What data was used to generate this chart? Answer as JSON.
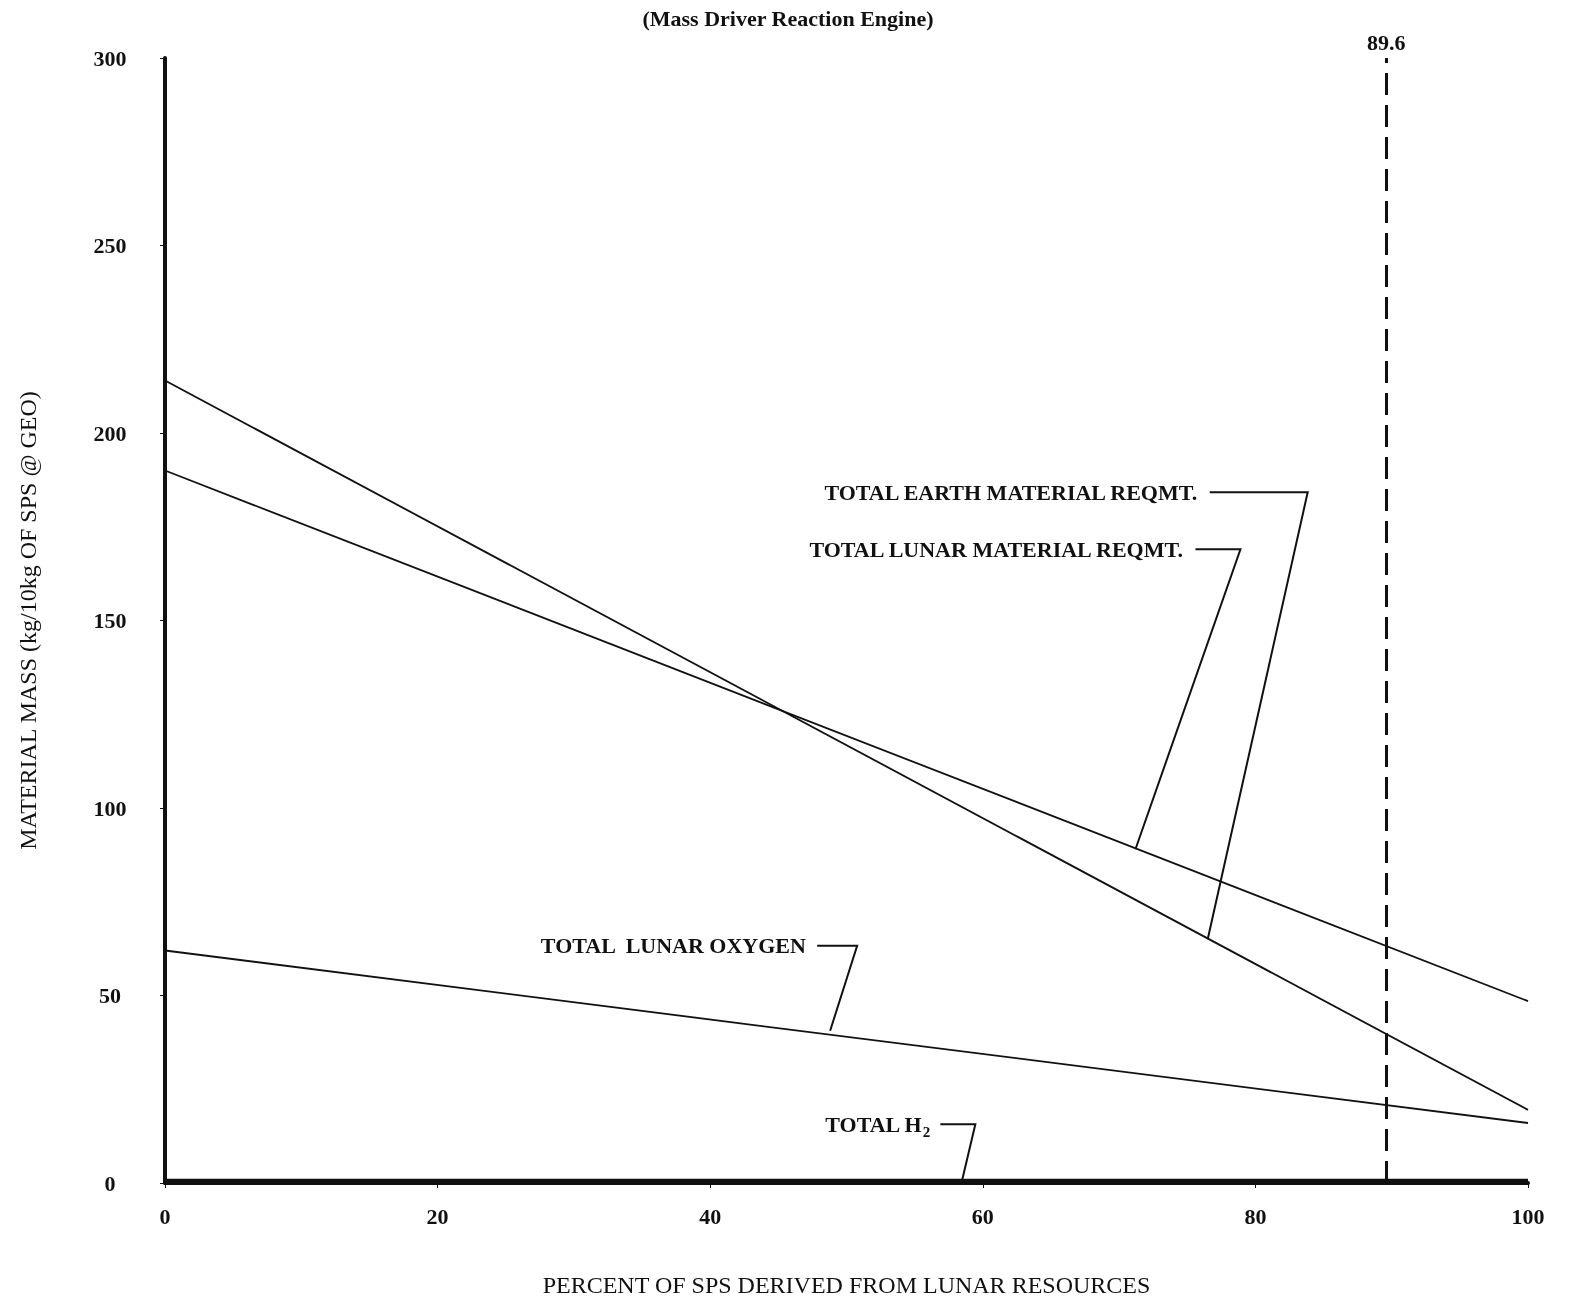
{
  "chart_data": {
    "type": "line",
    "title": "(Mass Driver Reaction Engine)",
    "xlabel": "PERCENT OF SPS DERIVED FROM LUNAR RESOURCES",
    "ylabel": "MATERIAL MASS (kg/10kg OF SPS @ GEO)",
    "xlim": [
      0,
      100
    ],
    "xticks": [
      0,
      20,
      40,
      60,
      80,
      100
    ],
    "ylim": [
      0,
      300
    ],
    "yticks": [
      0,
      50,
      100,
      150,
      200,
      250,
      300
    ],
    "x": [
      0,
      100
    ],
    "grid": false,
    "marker": "none",
    "line_style": "solid",
    "series": [
      {
        "color": "#111111",
        "values": [
          214,
          19.5
        ]
      },
      {
        "color": "#111111",
        "values": [
          190,
          48.5
        ]
      },
      {
        "color": "#111111",
        "values": [
          62,
          16
        ]
      },
      {
        "color": "#111111",
        "values": [
          0.5,
          0.5
        ]
      }
    ],
    "annotations": [
      {
        "text": "TOTAL EARTH MATERIAL REQMT.",
        "x": 76.5,
        "y": 65
      },
      {
        "text": "TOTAL LUNAR MATERIAL REQMT.",
        "x": 71.2,
        "y": 89
      },
      {
        "text": "TOTAL  LUNAR OXYGEN",
        "x": 48.8,
        "y": 40.6
      },
      {
        "text": "TOTAL H$_{2}$",
        "x": 58.5,
        "y": 1
      }
    ],
    "ref_lines": [
      {
        "axis": "x",
        "value": 89.6,
        "label": "89.6",
        "line_style": "dashed",
        "color": "#111111"
      }
    ]
  }
}
